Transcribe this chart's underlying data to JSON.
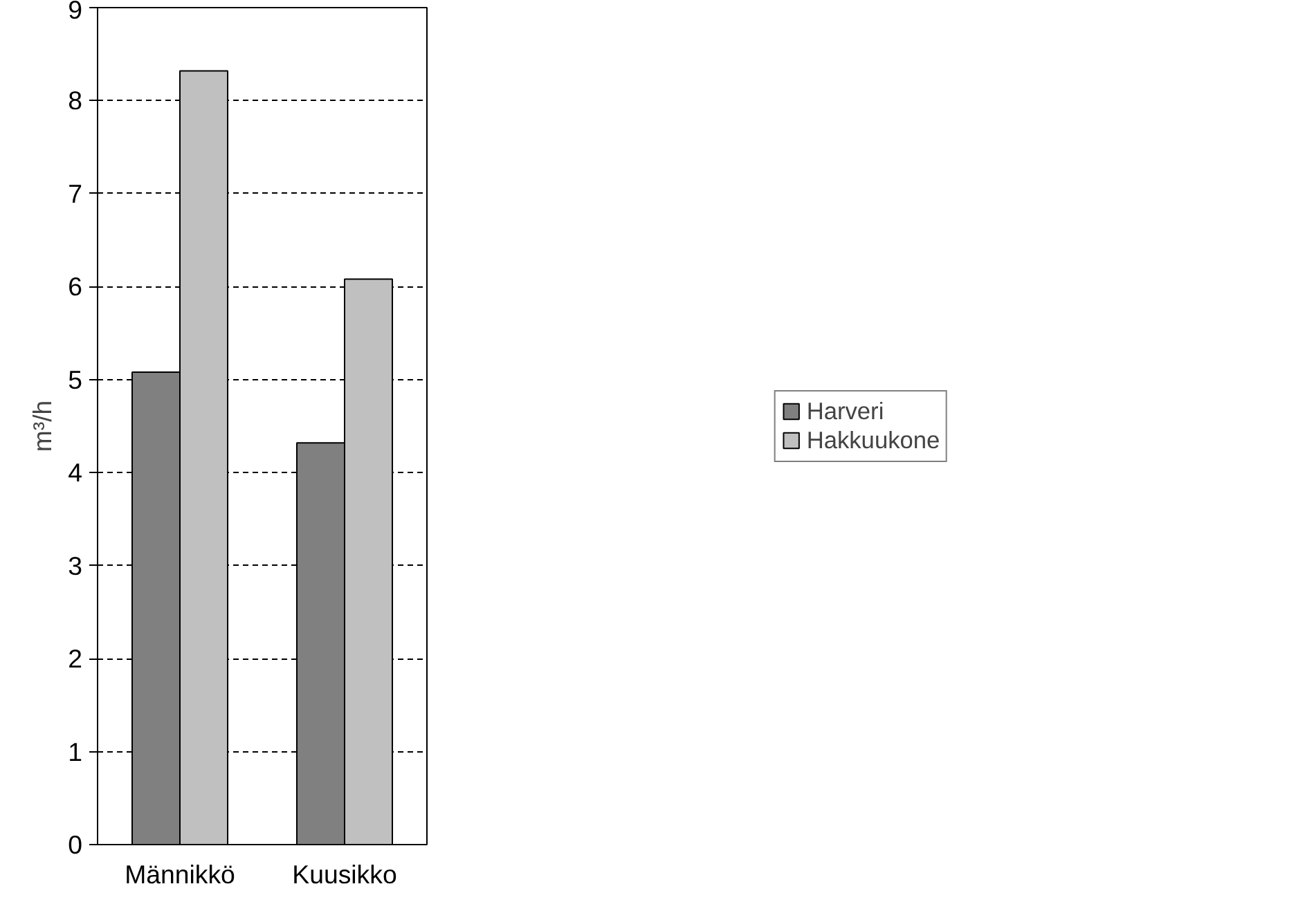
{
  "chart_data": {
    "type": "bar",
    "ylabel": "m³/h",
    "categories": [
      "Männikkö",
      "Kuusikko"
    ],
    "series": [
      {
        "name": "Harveri",
        "color": "#808080",
        "values": [
          5.08,
          4.32
        ]
      },
      {
        "name": "Hakkuukone",
        "color": "#c0c0c0",
        "values": [
          8.32,
          6.08
        ]
      }
    ],
    "ylim": [
      0,
      9
    ],
    "yticks": [
      0,
      1,
      2,
      3,
      4,
      5,
      6,
      7,
      8,
      9
    ],
    "grid": "y",
    "legend": "right"
  }
}
